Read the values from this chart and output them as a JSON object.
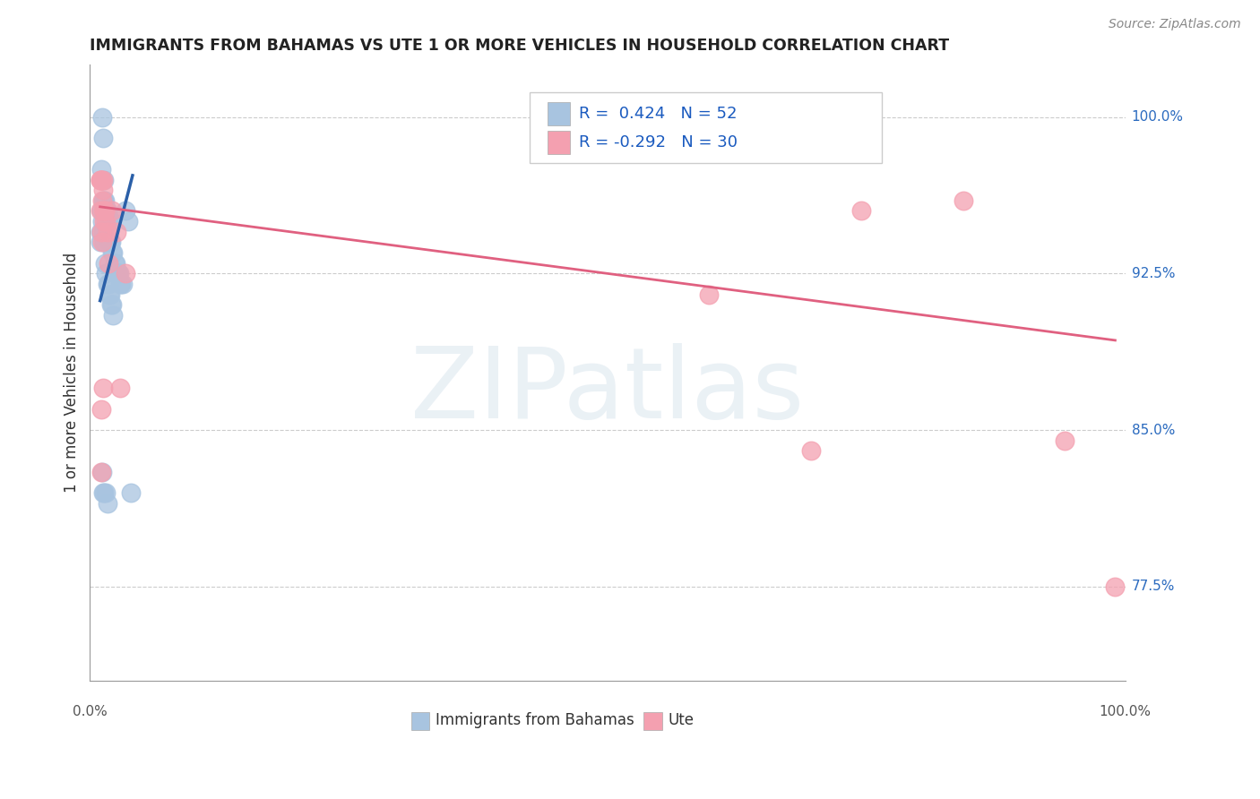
{
  "title": "IMMIGRANTS FROM BAHAMAS VS UTE 1 OR MORE VEHICLES IN HOUSEHOLD CORRELATION CHART",
  "source": "Source: ZipAtlas.com",
  "ylabel": "1 or more Vehicles in Household",
  "ytick_labels": [
    "100.0%",
    "92.5%",
    "85.0%",
    "77.5%"
  ],
  "ytick_values": [
    1.0,
    0.925,
    0.85,
    0.775
  ],
  "r1": 0.424,
  "n1": 52,
  "r2": -0.292,
  "n2": 30,
  "blue_color": "#a8c4e0",
  "blue_line_color": "#2a5fa8",
  "pink_color": "#f4a0b0",
  "pink_line_color": "#e06080",
  "blue_scatter_x": [
    0.002,
    0.003,
    0.004,
    0.005,
    0.006,
    0.007,
    0.008,
    0.009,
    0.01,
    0.011,
    0.012,
    0.013,
    0.014,
    0.015,
    0.016,
    0.017,
    0.018,
    0.019,
    0.02,
    0.021,
    0.022,
    0.003,
    0.004,
    0.005,
    0.025,
    0.007,
    0.008,
    0.028,
    0.01,
    0.011,
    0.001,
    0.002,
    0.003,
    0.004,
    0.005,
    0.006,
    0.007,
    0.008,
    0.009,
    0.01,
    0.011,
    0.012,
    0.013,
    0.002,
    0.003,
    0.004,
    0.03,
    0.006,
    0.007,
    0.0,
    0.0,
    0.001
  ],
  "blue_scatter_y": [
    1.0,
    0.99,
    0.97,
    0.96,
    0.955,
    0.945,
    0.94,
    0.94,
    0.94,
    0.94,
    0.935,
    0.935,
    0.93,
    0.93,
    0.925,
    0.925,
    0.925,
    0.925,
    0.92,
    0.92,
    0.92,
    0.96,
    0.96,
    0.955,
    0.955,
    0.955,
    0.95,
    0.95,
    0.95,
    0.95,
    0.955,
    0.95,
    0.945,
    0.94,
    0.93,
    0.925,
    0.92,
    0.92,
    0.915,
    0.915,
    0.91,
    0.91,
    0.905,
    0.83,
    0.82,
    0.82,
    0.82,
    0.82,
    0.815,
    0.945,
    0.94,
    0.975
  ],
  "pink_scatter_x": [
    0.001,
    0.003,
    0.004,
    0.006,
    0.008,
    0.005,
    0.012,
    0.016,
    0.025,
    0.003,
    0.005,
    0.007,
    0.02,
    0.0,
    0.001,
    0.002,
    0.003,
    0.001,
    0.001,
    0.0,
    0.002,
    0.003,
    0.0,
    0.001,
    0.6,
    0.7,
    0.75,
    0.85,
    0.95,
    1.0
  ],
  "pink_scatter_y": [
    0.97,
    0.97,
    0.95,
    0.95,
    0.93,
    0.955,
    0.955,
    0.945,
    0.925,
    0.955,
    0.955,
    0.945,
    0.87,
    0.955,
    0.945,
    0.94,
    0.87,
    0.86,
    0.83,
    0.97,
    0.96,
    0.965,
    0.97,
    0.97,
    0.915,
    0.84,
    0.955,
    0.96,
    0.845,
    0.775
  ],
  "blue_trend_x": [
    0.0,
    0.032
  ],
  "blue_trend_y": [
    0.912,
    0.972
  ],
  "pink_trend_x": [
    0.0,
    1.0
  ],
  "pink_trend_y": [
    0.957,
    0.893
  ],
  "xlim": [
    -0.01,
    1.01
  ],
  "ylim": [
    0.73,
    1.025
  ]
}
